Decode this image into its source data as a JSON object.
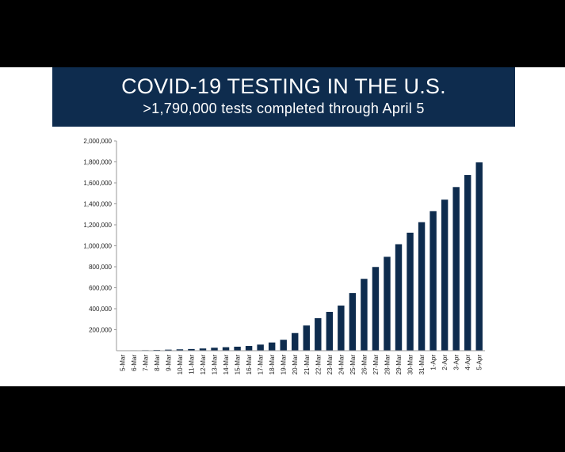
{
  "header": {
    "title": "COVID-19 TESTING IN THE U.S.",
    "subtitle": ">1,790,000 tests completed through April 5"
  },
  "colors": {
    "banner": "#0e2c4e",
    "bar": "#0e2c4e",
    "background": "#ffffff"
  },
  "chart_data": {
    "type": "bar",
    "title": "COVID-19 TESTING IN THE U.S.",
    "subtitle": ">1,790,000 tests completed through April 5",
    "xlabel": "",
    "ylabel": "",
    "ylim": [
      0,
      2000000
    ],
    "yticks": [
      200000,
      400000,
      600000,
      800000,
      1000000,
      1200000,
      1400000,
      1600000,
      1800000,
      2000000
    ],
    "ytick_labels": [
      "200,000",
      "400,000",
      "600,000",
      "800,000",
      "1,000,000",
      "1,200,000",
      "1,400,000",
      "1,600,000",
      "1,800,000",
      "2,000,000"
    ],
    "grid": false,
    "legend": "none",
    "categories": [
      "5-Mar",
      "6-Mar",
      "7-Mar",
      "8-Mar",
      "9-Mar",
      "10-Mar",
      "11-Mar",
      "12-Mar",
      "13-Mar",
      "14-Mar",
      "15-Mar",
      "16-Mar",
      "17-Mar",
      "18-Mar",
      "19-Mar",
      "20-Mar",
      "21-Mar",
      "22-Mar",
      "23-Mar",
      "24-Mar",
      "25-Mar",
      "26-Mar",
      "27-Mar",
      "28-Mar",
      "29-Mar",
      "30-Mar",
      "31-Mar",
      "1-Apr",
      "2-Apr",
      "3-Apr",
      "4-Apr",
      "5-Apr"
    ],
    "values": [
      2000,
      4000,
      5000,
      7000,
      10000,
      13000,
      16000,
      21000,
      28000,
      33000,
      38000,
      45000,
      58000,
      78000,
      104000,
      168000,
      240000,
      310000,
      370000,
      430000,
      550000,
      685000,
      798000,
      895000,
      1015000,
      1125000,
      1225000,
      1330000,
      1440000,
      1560000,
      1675000,
      1795000
    ]
  }
}
